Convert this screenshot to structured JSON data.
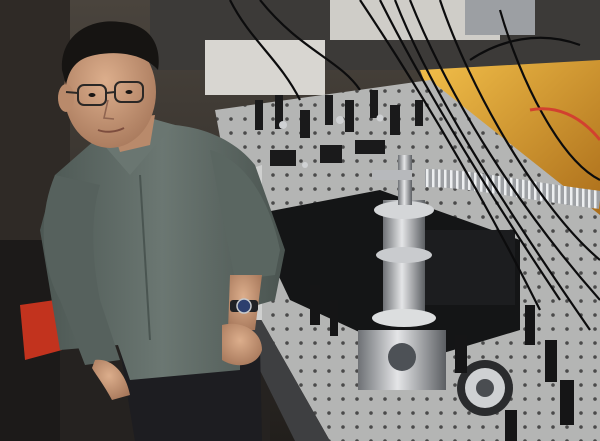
{
  "scene": {
    "subject": "person-standing-beside-optics-table",
    "colors": {
      "wall": "#3a3531",
      "floor": "#2a2623",
      "shirt": "#5f6b66",
      "shirt_shadow": "#3f4845",
      "skin": "#c99a7a",
      "hair": "#161412",
      "pants": "#1f1f22",
      "table_top": "#c8c8c6",
      "metal": "#b9bbbe",
      "metal_dark": "#5a5d61",
      "black_parts": "#121314",
      "cables": "#0d0d0e",
      "warm_light": "#e0a030",
      "red_accent": "#d2412f",
      "watch": "#2d3f6e"
    },
    "icons": [
      "person",
      "optics-table",
      "vacuum-chamber",
      "steel-bellows-hose",
      "cable-bundle",
      "wristwatch",
      "eyeglasses"
    ]
  }
}
